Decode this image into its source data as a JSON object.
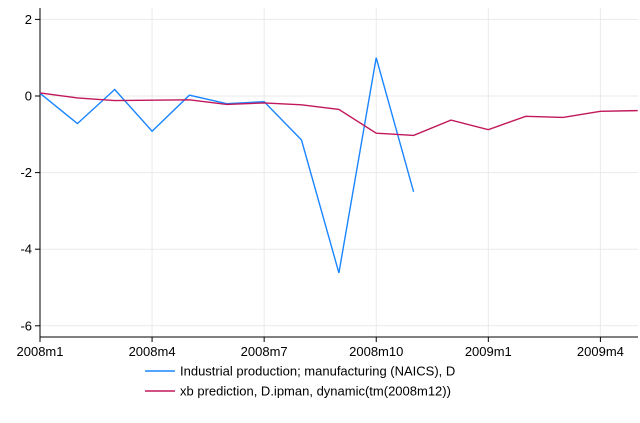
{
  "chart_data": {
    "type": "line",
    "xlabel": "",
    "ylabel": "",
    "grid": true,
    "legend_position": "bottom",
    "xlim": [
      "2008m1",
      "2009m6"
    ],
    "ylim": [
      -6.5,
      2.3
    ],
    "x_ticks": [
      "2008m1",
      "2008m4",
      "2008m7",
      "2008m10",
      "2009m1",
      "2009m4"
    ],
    "y_ticks": [
      2,
      0,
      -2,
      -4,
      -6
    ],
    "y_tick_labels": [
      "2",
      "0",
      "-2",
      "-4",
      "-6"
    ],
    "series": [
      {
        "name": "Industrial production; manufacturing (NAICS), D",
        "color": "#1a85ff",
        "x": [
          "2008m1",
          "2008m2",
          "2008m3",
          "2008m4",
          "2008m5",
          "2008m6",
          "2008m7",
          "2008m8",
          "2008m9",
          "2008m10",
          "2008m11"
        ],
        "values": [
          0.07,
          -0.72,
          0.17,
          -0.92,
          0.02,
          -0.2,
          -0.15,
          -1.15,
          -4.62,
          1.0,
          -2.5
        ]
      },
      {
        "name": "xb prediction, D.ipman, dynamic(tm(2008m12))",
        "color": "#c0185a",
        "x": [
          "2008m1",
          "2008m2",
          "2008m3",
          "2008m4",
          "2008m5",
          "2008m6",
          "2008m7",
          "2008m8",
          "2008m9",
          "2008m10",
          "2008m11",
          "2008m12",
          "2009m1",
          "2009m2",
          "2009m3",
          "2009m4",
          "2009m5"
        ],
        "values": [
          0.08,
          -0.05,
          -0.12,
          -0.11,
          -0.1,
          -0.22,
          -0.18,
          -0.23,
          -0.35,
          -0.97,
          -1.03,
          -0.63,
          -0.88,
          -0.53,
          -0.56,
          -0.4,
          -0.38
        ]
      }
    ]
  }
}
